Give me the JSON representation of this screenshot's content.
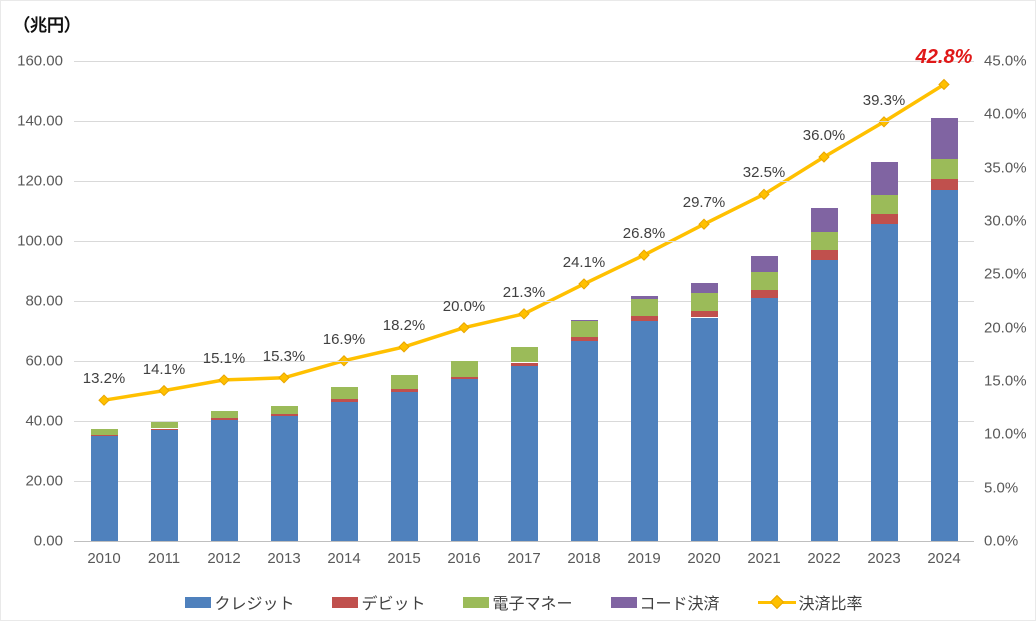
{
  "title": "（兆円）",
  "chart_data": {
    "type": "combo-stacked-bar-line",
    "title": "（兆円）",
    "categories": [
      "2010",
      "2011",
      "2012",
      "2013",
      "2014",
      "2015",
      "2016",
      "2017",
      "2018",
      "2019",
      "2020",
      "2021",
      "2022",
      "2023",
      "2024"
    ],
    "series": [
      {
        "name": "クレジット",
        "type": "bar",
        "color": "#4F81BD",
        "values": [
          35.0,
          37.0,
          40.5,
          41.7,
          46.3,
          49.8,
          53.9,
          58.4,
          66.7,
          73.4,
          74.5,
          81.0,
          93.8,
          105.7,
          117.0
        ]
      },
      {
        "name": "デビット",
        "type": "bar",
        "color": "#C0504D",
        "values": [
          0.5,
          0.5,
          0.5,
          0.6,
          0.9,
          0.8,
          0.9,
          1.1,
          1.4,
          1.7,
          2.2,
          2.8,
          3.2,
          3.3,
          3.7
        ]
      },
      {
        "name": "電子マネー",
        "type": "bar",
        "color": "#9BBB59",
        "values": [
          2.0,
          2.2,
          2.2,
          2.6,
          4.0,
          4.6,
          5.1,
          5.2,
          5.5,
          5.7,
          6.0,
          6.0,
          6.1,
          6.4,
          6.5
        ]
      },
      {
        "name": "コード決済",
        "type": "bar",
        "color": "#8064A2",
        "values": [
          0,
          0,
          0,
          0,
          0,
          0,
          0,
          0,
          0.2,
          1.0,
          3.2,
          5.3,
          7.9,
          10.9,
          13.9
        ]
      },
      {
        "name": "決済比率",
        "type": "line",
        "axis": "right",
        "color": "#FFC000",
        "marker_color": "#FFC000",
        "marker_edge": "#E8A500",
        "values": [
          13.2,
          14.1,
          15.1,
          15.3,
          16.9,
          18.2,
          20.0,
          21.3,
          24.1,
          26.8,
          29.7,
          32.5,
          36.0,
          39.3,
          42.8
        ],
        "labels": [
          "13.2%",
          "14.1%",
          "15.1%",
          "15.3%",
          "16.9%",
          "18.2%",
          "20.0%",
          "21.3%",
          "24.1%",
          "26.8%",
          "29.7%",
          "32.5%",
          "36.0%",
          "39.3%",
          "42.8%"
        ]
      }
    ],
    "emphasis": {
      "series": "決済比率",
      "index": 14,
      "color": "#E01818"
    },
    "left_axis": {
      "min": 0,
      "max": 160,
      "ticks": [
        "160.00",
        "140.00",
        "120.00",
        "100.00",
        "80.00",
        "60.00",
        "40.00",
        "20.00",
        "0.00"
      ]
    },
    "right_axis": {
      "min": 0,
      "max": 45,
      "ticks": [
        "45.0%",
        "40.0%",
        "35.0%",
        "30.0%",
        "25.0%",
        "20.0%",
        "15.0%",
        "10.0%",
        "5.0%",
        "0.0%"
      ]
    },
    "grid": true,
    "legend_position": "bottom"
  }
}
